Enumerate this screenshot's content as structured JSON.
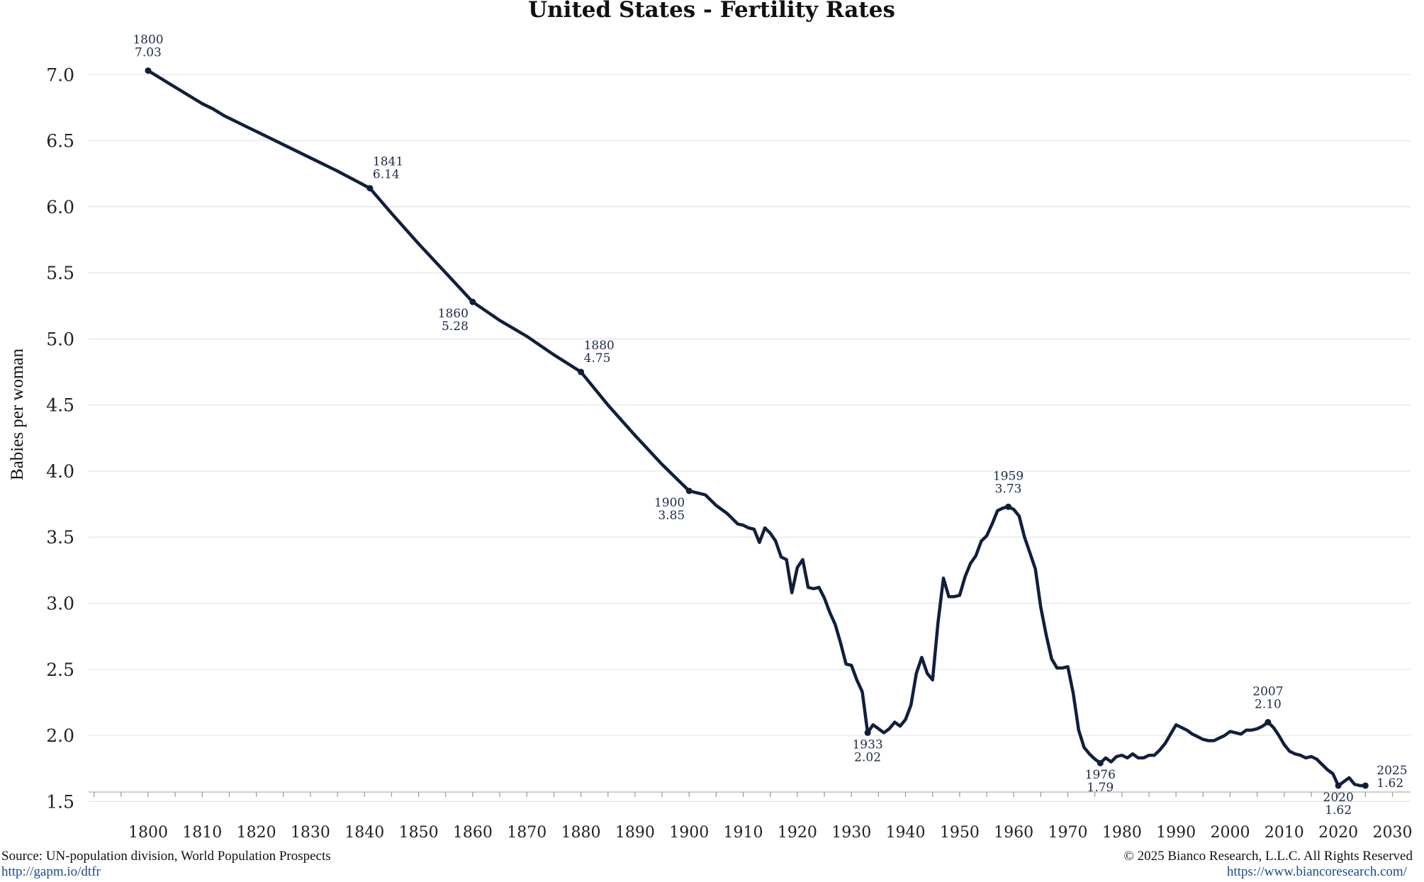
{
  "chart_data": {
    "type": "line",
    "title": "United States - Fertility Rates",
    "ylabel": "Babies per woman",
    "xlabel": "",
    "xlim": [
      1789,
      2034
    ],
    "ylim": [
      1.4,
      7.35
    ],
    "yticks": [
      "1.5",
      "2.0",
      "2.5",
      "3.0",
      "3.5",
      "4.0",
      "4.5",
      "5.0",
      "5.5",
      "6.0",
      "6.5",
      "7.0"
    ],
    "xticks": [
      "1800",
      "1810",
      "1820",
      "1830",
      "1840",
      "1850",
      "1860",
      "1870",
      "1880",
      "1890",
      "1900",
      "1910",
      "1920",
      "1930",
      "1940",
      "1950",
      "1960",
      "1970",
      "1980",
      "1990",
      "2000",
      "2010",
      "2020",
      "2030"
    ],
    "grid": "horizontal",
    "line_color": "#0f1f3d",
    "series": [
      {
        "x": [
          1800,
          1802,
          1804,
          1806,
          1808,
          1810,
          1812,
          1814,
          1816,
          1818,
          1820,
          1822,
          1825,
          1830,
          1835,
          1841,
          1845,
          1850,
          1855,
          1860,
          1865,
          1870,
          1875,
          1880,
          1885,
          1890,
          1895,
          1900,
          1903,
          1905,
          1907,
          1909,
          1910,
          1911,
          1912,
          1913,
          1914,
          1915,
          1916,
          1917,
          1918,
          1919,
          1920,
          1921,
          1922,
          1923,
          1924,
          1925,
          1926,
          1927,
          1928,
          1929,
          1930,
          1931,
          1932,
          1933,
          1934,
          1935,
          1936,
          1937,
          1938,
          1939,
          1940,
          1941,
          1942,
          1943,
          1944,
          1945,
          1946,
          1947,
          1948,
          1949,
          1950,
          1951,
          1952,
          1953,
          1954,
          1955,
          1956,
          1957,
          1958,
          1959,
          1960,
          1961,
          1962,
          1963,
          1964,
          1965,
          1966,
          1967,
          1968,
          1969,
          1970,
          1971,
          1972,
          1973,
          1974,
          1975,
          1976,
          1977,
          1978,
          1979,
          1980,
          1981,
          1982,
          1983,
          1984,
          1985,
          1986,
          1987,
          1988,
          1989,
          1990,
          1991,
          1992,
          1993,
          1994,
          1995,
          1996,
          1997,
          1998,
          1999,
          2000,
          2001,
          2002,
          2003,
          2004,
          2005,
          2006,
          2007,
          2008,
          2009,
          2010,
          2011,
          2012,
          2013,
          2014,
          2015,
          2016,
          2017,
          2018,
          2019,
          2020,
          2021,
          2022,
          2023,
          2024,
          2025
        ],
        "values": [
          7.03,
          6.98,
          6.93,
          6.88,
          6.83,
          6.78,
          6.74,
          6.69,
          6.65,
          6.61,
          6.57,
          6.53,
          6.47,
          6.37,
          6.27,
          6.14,
          5.95,
          5.72,
          5.5,
          5.28,
          5.14,
          5.02,
          4.88,
          4.75,
          4.5,
          4.27,
          4.05,
          3.85,
          3.82,
          3.74,
          3.68,
          3.6,
          3.59,
          3.57,
          3.56,
          3.46,
          3.57,
          3.53,
          3.47,
          3.35,
          3.33,
          3.08,
          3.27,
          3.33,
          3.12,
          3.11,
          3.12,
          3.04,
          2.93,
          2.84,
          2.7,
          2.54,
          2.53,
          2.42,
          2.33,
          2.02,
          2.08,
          2.05,
          2.02,
          2.05,
          2.1,
          2.07,
          2.12,
          2.23,
          2.47,
          2.59,
          2.47,
          2.42,
          2.85,
          3.19,
          3.05,
          3.05,
          3.06,
          3.2,
          3.3,
          3.36,
          3.47,
          3.51,
          3.6,
          3.7,
          3.72,
          3.73,
          3.71,
          3.66,
          3.5,
          3.38,
          3.26,
          2.97,
          2.76,
          2.58,
          2.51,
          2.51,
          2.52,
          2.32,
          2.04,
          1.91,
          1.86,
          1.82,
          1.79,
          1.83,
          1.8,
          1.84,
          1.85,
          1.83,
          1.86,
          1.83,
          1.83,
          1.85,
          1.85,
          1.89,
          1.94,
          2.01,
          2.08,
          2.06,
          2.04,
          2.01,
          1.99,
          1.97,
          1.96,
          1.96,
          1.98,
          2.0,
          2.03,
          2.02,
          2.01,
          2.04,
          2.04,
          2.05,
          2.07,
          2.1,
          2.06,
          2.0,
          1.93,
          1.88,
          1.86,
          1.85,
          1.83,
          1.84,
          1.82,
          1.78,
          1.74,
          1.71,
          1.62,
          1.65,
          1.68,
          1.63,
          1.62,
          1.62
        ]
      }
    ],
    "annotations": [
      {
        "year": "1800",
        "value": "7.03",
        "x": 1800,
        "y": 7.03,
        "pos": "above"
      },
      {
        "year": "1841",
        "value": "6.14",
        "x": 1841,
        "y": 6.14,
        "pos": "above-right"
      },
      {
        "year": "1860",
        "value": "5.28",
        "x": 1860,
        "y": 5.28,
        "pos": "below-left"
      },
      {
        "year": "1880",
        "value": "4.75",
        "x": 1880,
        "y": 4.75,
        "pos": "above-right"
      },
      {
        "year": "1900",
        "value": "3.85",
        "x": 1900,
        "y": 3.85,
        "pos": "below-left"
      },
      {
        "year": "1959",
        "value": "3.73",
        "x": 1959,
        "y": 3.73,
        "pos": "above"
      },
      {
        "year": "1933",
        "value": "2.02",
        "x": 1933,
        "y": 2.02,
        "pos": "below"
      },
      {
        "year": "1976",
        "value": "1.79",
        "x": 1976,
        "y": 1.79,
        "pos": "below"
      },
      {
        "year": "2007",
        "value": "2.10",
        "x": 2007,
        "y": 2.1,
        "pos": "above"
      },
      {
        "year": "2020",
        "value": "1.62",
        "x": 2020,
        "y": 1.62,
        "pos": "below"
      },
      {
        "year": "2025",
        "value": "1.62",
        "x": 2025,
        "y": 1.62,
        "pos": "right"
      }
    ]
  },
  "footer": {
    "source": "Source: UN-population division, World Population Prospects",
    "source_url": "http://gapm.io/dtfr",
    "copyright": "© 2025 Bianco Research, L.L.C. All Rights Reserved",
    "site_url": "https://www.biancoresearch.com/"
  }
}
